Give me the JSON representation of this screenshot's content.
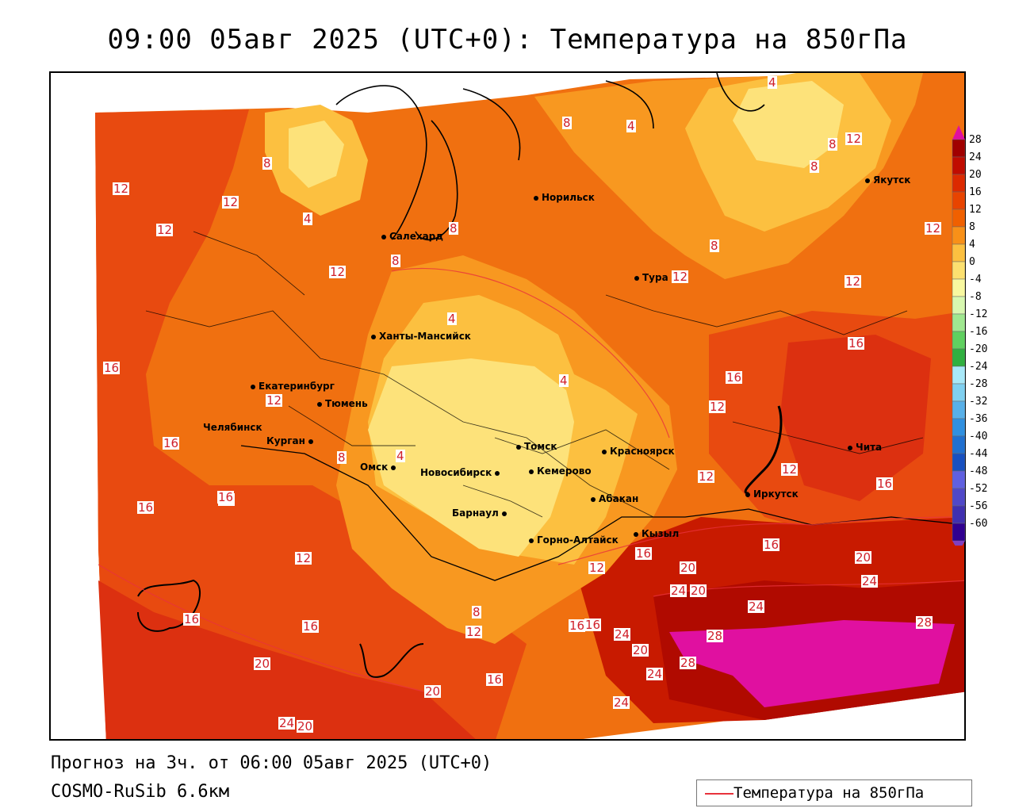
{
  "title": "09:00 05авг 2025 (UTC+0): Температура на 850гПа",
  "footer": {
    "forecast": "Прогноз на 3ч. от 06:00 05авг 2025 (UTC+0)",
    "model": "COSMO-RuSib 6.6км"
  },
  "legend": {
    "label": "Температура на 850гПа",
    "line_color": "#e8323c"
  },
  "colorbar": {
    "ticks": [
      "28",
      "24",
      "20",
      "16",
      "12",
      "8",
      "4",
      "0",
      "-4",
      "-8",
      "-12",
      "-16",
      "-20",
      "-24",
      "-28",
      "-32",
      "-36",
      "-40",
      "-44",
      "-48",
      "-52",
      "-56",
      "-60"
    ],
    "colors": [
      "#a00000",
      "#c00c00",
      "#dc2a00",
      "#e84400",
      "#f06000",
      "#f89018",
      "#fcc040",
      "#fce070",
      "#f8f8a0",
      "#d8f8b0",
      "#a0e890",
      "#60d060",
      "#30b040",
      "#a8e8f8",
      "#80d0f0",
      "#58b0e8",
      "#3090e0",
      "#2070d0",
      "#1850c0",
      "#6060e0",
      "#5048c8",
      "#4030b0",
      "#300090"
    ],
    "top_color": "#e010a0",
    "bottom_color": "#8040c0"
  },
  "cities": [
    {
      "name": "Норильск"
    },
    {
      "name": "Якутск"
    },
    {
      "name": "Салехард"
    },
    {
      "name": "Тура"
    },
    {
      "name": "Ханты-Мансийск"
    },
    {
      "name": "Екатеринбург"
    },
    {
      "name": "Тюмень"
    },
    {
      "name": "Челябинск"
    },
    {
      "name": "Курган"
    },
    {
      "name": "Омск"
    },
    {
      "name": "Томск"
    },
    {
      "name": "Красноярск"
    },
    {
      "name": "Новосибирск"
    },
    {
      "name": "Кемерово"
    },
    {
      "name": "Абакан"
    },
    {
      "name": "Барнаул"
    },
    {
      "name": "Горно-Алтайск"
    },
    {
      "name": "Кызыл"
    },
    {
      "name": "Иркутск"
    },
    {
      "name": "Чита"
    }
  ],
  "contour_labels": [
    "4",
    "8",
    "4",
    "8",
    "12",
    "8",
    "8",
    "12",
    "12",
    "12",
    "4",
    "8",
    "12",
    "8",
    "12",
    "12",
    "4",
    "8",
    "12",
    "12",
    "16",
    "4",
    "16",
    "12",
    "16",
    "16",
    "12",
    "16",
    "16",
    "4",
    "8",
    "12",
    "16",
    "12",
    "20",
    "16",
    "20",
    "24",
    "24",
    "16",
    "16",
    "12",
    "20",
    "24",
    "28",
    "28",
    "16",
    "24",
    "20",
    "8",
    "16",
    "20",
    "16",
    "24",
    "24",
    "20",
    "28",
    "24",
    "20",
    "12",
    "16",
    "16"
  ]
}
